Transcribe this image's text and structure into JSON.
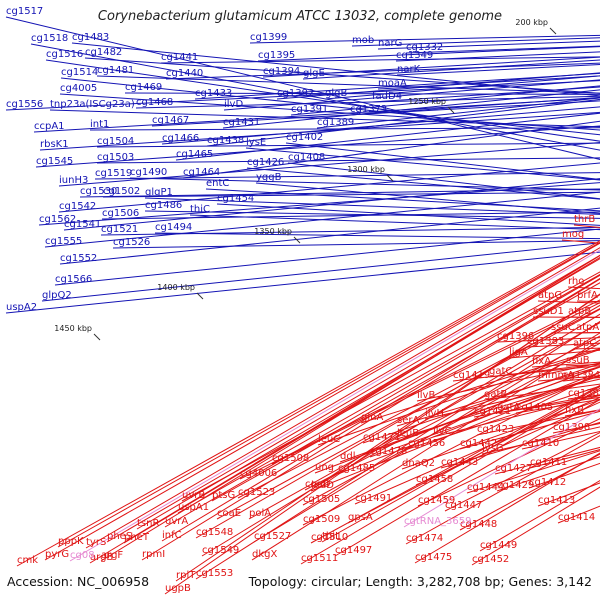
{
  "title": "Corynebacterium glutamicum ATCC 13032, complete genome",
  "footer": {
    "accession": "Accession: NC_006958",
    "summary": "Topology: circular; Length: 3,282,708 bp; Genes: 3,142"
  },
  "ticks": [
    "200 kbp",
    "1250 kbp",
    "1300 kbp",
    "1350 kbp",
    "1400 kbp",
    "1450 kbp"
  ],
  "colors": {
    "forward_genes": "#1414b4",
    "reverse_genes": "#e01414",
    "rna_genes": "#e68ad2",
    "backbone": "#8c8c8c"
  },
  "forward_labels": [
    "cg1517",
    "cg1518",
    "cg1516",
    "cg1514",
    "cg4005",
    "tnp23a(ISCg23a)",
    "cg1483",
    "cg1482",
    "cg1481",
    "cg1469",
    "cg1468",
    "cg1467",
    "cg1466",
    "cg1465",
    "cg1464",
    "cg1441",
    "cg1440",
    "cg1433",
    "ilvD",
    "cg1431",
    "cg1438",
    "cg1399",
    "cg1395",
    "cg1394",
    "glgE",
    "cg1392",
    "glgB",
    "cg1391",
    "cg1389",
    "mob",
    "narG",
    "cg1349",
    "cg1332",
    "narK",
    "moaA",
    "fadD4",
    "cg1373",
    "cg1556",
    "ccpA1",
    "rbsK1",
    "cg1545",
    "iunH3",
    "cg1542",
    "cg1541",
    "cg1555",
    "cg1552",
    "cg1562",
    "cg1566",
    "glpQ2",
    "uspA2",
    "int1",
    "cg1504",
    "cg1503",
    "cg1519",
    "cg1530",
    "cg1502",
    "cg1506",
    "cg1521",
    "cg1526",
    "cg1490",
    "cg1486",
    "cg1494",
    "glgP1",
    "thiC",
    "entC",
    "cg1454",
    "lysE",
    "cg1426",
    "yggB",
    "cg1402",
    "cg1408"
  ],
  "reverse_labels": [
    "thrB",
    "mog",
    "rho",
    "atpG",
    "prfA",
    "atpB",
    "ssuD1",
    "ssuC",
    "atpA",
    "atpC",
    "ssuB",
    "cg1396",
    "cg1383",
    "fixA",
    "mmmA",
    "cg1384",
    "ligA",
    "gatC",
    "cg1385",
    "cg1419",
    "gatB",
    "gatA",
    "cg1405",
    "fixB",
    "cg1421",
    "cg1398",
    "cg1423",
    "cg1410",
    "lysG",
    "cg1427",
    "cg1411",
    "ilvB",
    "ilvH",
    "ilvC",
    "cg1442",
    "cg1443",
    "cg1444",
    "cg1429",
    "cg1412",
    "cg1413",
    "cg1414",
    "serA",
    "leuB",
    "cg1456",
    "dnaQ2",
    "glnA",
    "cg1471",
    "cg1478",
    "leuC",
    "ddl",
    "ung",
    "cg1485",
    "leuD",
    "cg1491",
    "cg1458",
    "cg1459",
    "cg1447",
    "cg1448",
    "cg1449",
    "cg1452",
    "cg1474",
    "cg1475",
    "gpsA",
    "cg1509",
    "cg1510",
    "thiL",
    "cg1497",
    "cg1511",
    "coaD",
    "cg1505",
    "cg1508",
    "cg4006",
    "cg1523",
    "polA",
    "coaE",
    "cg1527",
    "dkgX",
    "cg1548",
    "cg1549",
    "cg1553",
    "ptsG",
    "uvrB",
    "uspA1",
    "uvrA",
    "infC",
    "rpmI",
    "rplT",
    "ugpB",
    "tsnR",
    "pheS",
    "pheT",
    "argB",
    "argF",
    "tyrS",
    "pppK",
    "pyrG",
    "cmk"
  ],
  "rna_labels": [
    "cg08",
    "cgtRNA_3659"
  ]
}
